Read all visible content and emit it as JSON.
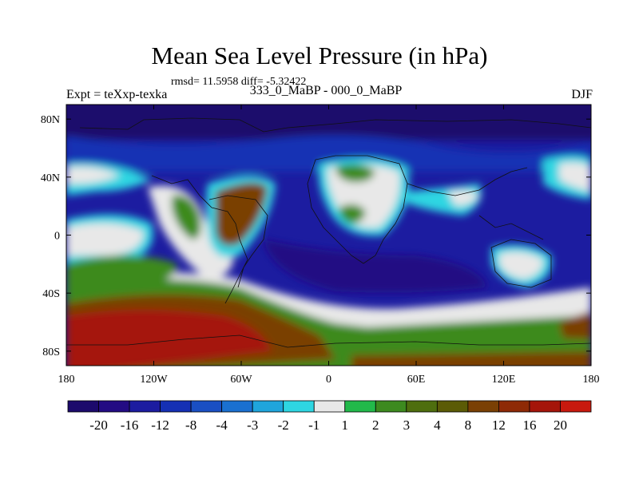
{
  "title": "Mean Sea Level Pressure (in hPa)",
  "stats": "rmsd= 11.5958 diff= -5.32422",
  "experiment": "Expt = teXxp-texka",
  "subtitle": "333_0_MaBP - 000_0_MaBP",
  "season": "DJF",
  "map": {
    "lon_ticks": [
      {
        "value": 180,
        "label": "180"
      },
      {
        "value": -120,
        "label": "120W"
      },
      {
        "value": -60,
        "label": "60W"
      },
      {
        "value": 0,
        "label": "0"
      },
      {
        "value": 60,
        "label": "60E"
      },
      {
        "value": 120,
        "label": "120E"
      },
      {
        "value": 180,
        "label": "180"
      }
    ],
    "lat_ticks": [
      {
        "value": 80,
        "label": "80N"
      },
      {
        "value": 40,
        "label": "40N"
      },
      {
        "value": 0,
        "label": "0"
      },
      {
        "value": -40,
        "label": "40S"
      },
      {
        "value": -80,
        "label": "80S"
      }
    ],
    "lat_range": [
      -90,
      90
    ],
    "lon_range": [
      -180,
      180
    ]
  },
  "colorbar": {
    "colors": [
      "#1c0a6c",
      "#230b83",
      "#1c1ca0",
      "#1530b4",
      "#1a4fc3",
      "#1a70d0",
      "#1fa5dc",
      "#2ed6e2",
      "#e8e8e8",
      "#22b94a",
      "#3d8a1f",
      "#4e6e0e",
      "#5b5b06",
      "#7a4004",
      "#8e2a06",
      "#a5150a",
      "#c8190e"
    ],
    "labels": [
      "-20",
      "-16",
      "-12",
      "-8",
      "-4",
      "-3",
      "-2",
      "-1",
      "1",
      "2",
      "3",
      "4",
      "8",
      "12",
      "16",
      "20"
    ]
  }
}
